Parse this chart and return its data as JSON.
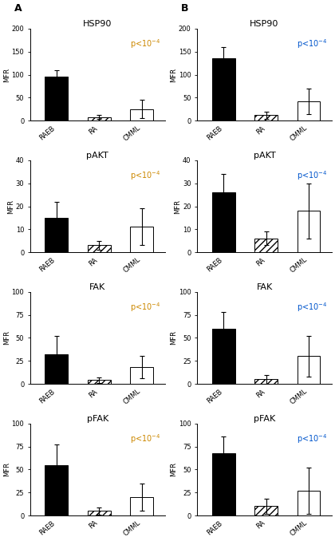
{
  "columns": [
    "A",
    "B"
  ],
  "rows": [
    "HSP90",
    "pAKT",
    "FAK",
    "pFAK"
  ],
  "categories": [
    "RAEB",
    "RA",
    "CMML"
  ],
  "ylims": {
    "HSP90": [
      0,
      200
    ],
    "pAKT": [
      0,
      40
    ],
    "FAK": [
      0,
      100
    ],
    "pFAK": [
      0,
      100
    ]
  },
  "yticks": {
    "HSP90": [
      0,
      50,
      100,
      150,
      200
    ],
    "pAKT": [
      0,
      10,
      20,
      30,
      40
    ],
    "FAK": [
      0,
      25,
      50,
      75,
      100
    ],
    "pFAK": [
      0,
      25,
      50,
      75,
      100
    ]
  },
  "data": {
    "A": {
      "HSP90": {
        "values": [
          95,
          8,
          25
        ],
        "errors": [
          15,
          5,
          20
        ]
      },
      "pAKT": {
        "values": [
          15,
          3,
          11
        ],
        "errors": [
          7,
          2,
          8
        ]
      },
      "FAK": {
        "values": [
          32,
          4,
          18
        ],
        "errors": [
          20,
          3,
          12
        ]
      },
      "pFAK": {
        "values": [
          55,
          5,
          20
        ],
        "errors": [
          22,
          4,
          15
        ]
      }
    },
    "B": {
      "HSP90": {
        "values": [
          135,
          12,
          42
        ],
        "errors": [
          25,
          8,
          28
        ]
      },
      "pAKT": {
        "values": [
          26,
          6,
          18
        ],
        "errors": [
          8,
          3,
          12
        ]
      },
      "FAK": {
        "values": [
          60,
          5,
          30
        ],
        "errors": [
          18,
          5,
          22
        ]
      },
      "pFAK": {
        "values": [
          68,
          10,
          27
        ],
        "errors": [
          18,
          8,
          25
        ]
      }
    }
  },
  "pvalue_color_A": "#cc8800",
  "pvalue_color_B": "#0055cc",
  "ylabel": "MFR",
  "background_color": "#ffffff",
  "bar_width": 0.35,
  "fontsize_title": 8,
  "fontsize_label": 6,
  "fontsize_tick": 6,
  "fontsize_pval": 7,
  "fontsize_col_label": 9
}
